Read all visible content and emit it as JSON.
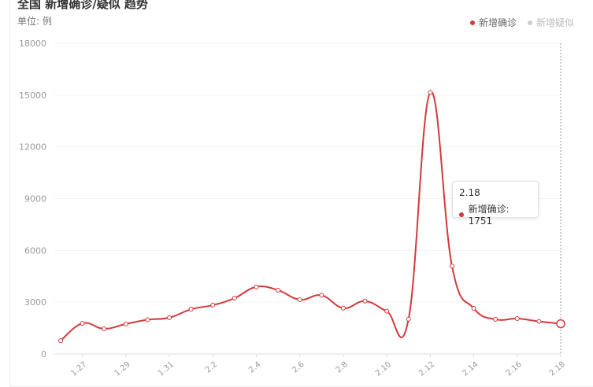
{
  "header": {
    "title": "全国 新增确诊/疑似 趋势",
    "unit": "单位: 例"
  },
  "legend": [
    {
      "name": "新增确诊",
      "color": "#d33a3a",
      "active": true
    },
    {
      "name": "新增疑似",
      "color": "#cccccc",
      "active": false
    }
  ],
  "tooltip": {
    "date": "2.18",
    "series_name": "新增确诊",
    "value": "1751",
    "text": "新增确诊: 1751"
  },
  "chart_data": {
    "type": "line",
    "title": "全国 新增确诊/疑似 趋势",
    "ylabel": "单位: 例",
    "ylim": [
      0,
      18000
    ],
    "yticks": [
      "0",
      "3000",
      "6000",
      "9000",
      "12000",
      "15000",
      "18000"
    ],
    "xticks": [
      "1.27",
      "1.29",
      "1.31",
      "2.2",
      "2.4",
      "2.6",
      "2.8",
      "2.10",
      "2.12",
      "2.14",
      "2.16",
      "2.18"
    ],
    "x": [
      "1.26",
      "1.27",
      "1.28",
      "1.29",
      "1.30",
      "1.31",
      "2.1",
      "2.2",
      "2.3",
      "2.4",
      "2.5",
      "2.6",
      "2.7",
      "2.8",
      "2.9",
      "2.10",
      "2.11",
      "2.12",
      "2.13",
      "2.14",
      "2.15",
      "2.16",
      "2.17",
      "2.18"
    ],
    "series": [
      {
        "name": "新增确诊",
        "color": "#d33a3a",
        "values": [
          769,
          1771,
          1459,
          1737,
          1982,
          2102,
          2590,
          2829,
          3235,
          3887,
          3694,
          3143,
          3399,
          2656,
          3062,
          2478,
          2015,
          15152,
          5090,
          2641,
          2008,
          2048,
          1886,
          1751
        ]
      }
    ],
    "grid": true,
    "legend_position": "top-right"
  }
}
